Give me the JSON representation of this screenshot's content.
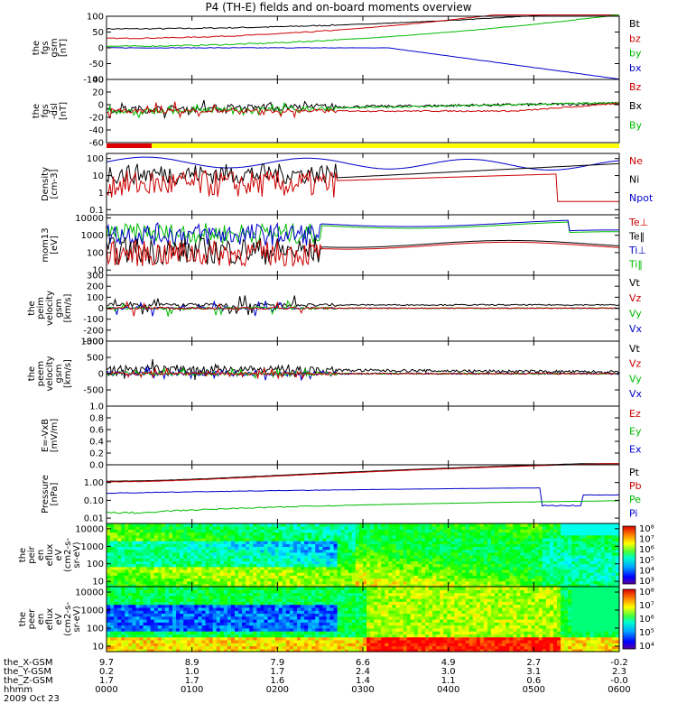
{
  "chart_data": {
    "type": "line",
    "title": "P4 (TH-E) fields and on-board moments overview",
    "time_ticks": [
      "0000",
      "0100",
      "0200",
      "0300",
      "0400",
      "0500",
      "0600"
    ],
    "date_label": "2009 Oct 23",
    "ephemeris": [
      {
        "label": "the_X-GSM",
        "values": [
          "9.7",
          "8.9",
          "7.9",
          "6.6",
          "4.9",
          "2.7",
          "-0.2"
        ]
      },
      {
        "label": "the_Y-GSM",
        "values": [
          "0.2",
          "1.0",
          "1.7",
          "2.4",
          "3.0",
          "3.1",
          "2.3"
        ]
      },
      {
        "label": "the_Z-GSM",
        "values": [
          "1.7",
          "1.7",
          "1.6",
          "1.4",
          "1.1",
          "0.6",
          "-0.0"
        ]
      },
      {
        "label": "hhmm",
        "values": [
          "0000",
          "0100",
          "0200",
          "0300",
          "0400",
          "0500",
          "0600"
        ]
      }
    ],
    "panels": [
      {
        "id": "p1",
        "ylabel": [
          "the",
          "fgs",
          "gsm",
          "[nT]"
        ],
        "yticks": [
          "100",
          "50",
          "0",
          "-50",
          "-100"
        ],
        "ylim": [
          -100,
          100
        ],
        "legend": [
          {
            "name": "Bt",
            "color": "#000000"
          },
          {
            "name": "bz",
            "color": "#cc0000"
          },
          {
            "name": "by",
            "color": "#00bb00"
          },
          {
            "name": "bx",
            "color": "#0000cc"
          }
        ]
      },
      {
        "id": "p2",
        "ylabel": [
          "the",
          "fgs",
          "-dsl",
          "[nT]"
        ],
        "yticks": [
          "40",
          "20",
          "0",
          "-20",
          "-40",
          "-60"
        ],
        "ylim": [
          -60,
          40
        ],
        "legend": [
          {
            "name": "Bz",
            "color": "#cc0000"
          },
          {
            "name": "Bx",
            "color": "#000000"
          },
          {
            "name": "By",
            "color": "#00bb00"
          }
        ]
      },
      {
        "id": "p3",
        "ylabel": [
          "Density",
          "[cm-3]"
        ],
        "yticks": [
          "100",
          "10",
          "1",
          "0.1"
        ],
        "ylim": [
          0.05,
          200
        ],
        "log": true,
        "legend": [
          {
            "name": "Ne",
            "color": "#cc0000"
          },
          {
            "name": "Ni",
            "color": "#000000"
          },
          {
            "name": "Npot",
            "color": "#0000cc"
          }
        ]
      },
      {
        "id": "p4",
        "ylabel": [
          "mom13",
          "[eV]"
        ],
        "yticks": [
          "10000",
          "1000",
          "100",
          "10"
        ],
        "ylim": [
          5,
          15000
        ],
        "log": true,
        "legend": [
          {
            "name": "Te⊥",
            "color": "#cc0000"
          },
          {
            "name": "Te‖",
            "color": "#000000"
          },
          {
            "name": "Ti⊥",
            "color": "#0000cc"
          },
          {
            "name": "Ti‖",
            "color": "#00bb00"
          }
        ]
      },
      {
        "id": "p5",
        "ylabel": [
          "the",
          "peim",
          "velocity",
          "gsm",
          "[km/s]"
        ],
        "yticks": [
          "300",
          "200",
          "100",
          "0",
          "-100",
          "-200",
          "-300"
        ],
        "ylim": [
          -300,
          300
        ],
        "legend": [
          {
            "name": "Vt",
            "color": "#000000"
          },
          {
            "name": "Vz",
            "color": "#cc0000"
          },
          {
            "name": "Vy",
            "color": "#00bb00"
          },
          {
            "name": "Vx",
            "color": "#0000cc"
          }
        ]
      },
      {
        "id": "p6",
        "ylabel": [
          "the",
          "peem",
          "velocity",
          "gsm",
          "[km/s]"
        ],
        "yticks": [
          "1000",
          "500",
          "0",
          "-500"
        ],
        "ylim": [
          -1000,
          1000
        ],
        "legend": [
          {
            "name": "Vt",
            "color": "#000000"
          },
          {
            "name": "Vz",
            "color": "#cc0000"
          },
          {
            "name": "Vy",
            "color": "#00bb00"
          },
          {
            "name": "Vx",
            "color": "#0000cc"
          }
        ]
      },
      {
        "id": "p7",
        "ylabel": [
          "E=-VxB",
          "[mV/m]"
        ],
        "yticks": [
          "1.0",
          "0.8",
          "0.6",
          "0.4",
          "0.2",
          "0.0"
        ],
        "ylim": [
          0,
          1
        ],
        "legend": [
          {
            "name": "Ez",
            "color": "#cc0000"
          },
          {
            "name": "Ey",
            "color": "#00bb00"
          },
          {
            "name": "Ex",
            "color": "#0000cc"
          }
        ]
      },
      {
        "id": "p8",
        "ylabel": [
          "Pressure",
          "[nPa]"
        ],
        "yticks": [
          "1.00",
          "0.10",
          "0.01"
        ],
        "ylim": [
          0.005,
          10
        ],
        "log": true,
        "legend": [
          {
            "name": "Pt",
            "color": "#000000"
          },
          {
            "name": "Pb",
            "color": "#cc0000"
          },
          {
            "name": "Pe",
            "color": "#00bb00"
          },
          {
            "name": "Pi",
            "color": "#0000cc"
          }
        ]
      },
      {
        "id": "p9",
        "ylabel": [
          "the",
          "peir",
          "en",
          "eflux",
          "eV",
          "(cm2-s-",
          "sr-eV)"
        ],
        "yticks": [
          "10000",
          "1000",
          "100",
          "10"
        ],
        "ylim": [
          5,
          20000
        ],
        "log": true,
        "cbar": [
          "10⁸",
          "10⁷",
          "10⁶",
          "10⁵",
          "10⁴",
          "10³"
        ]
      },
      {
        "id": "p10",
        "ylabel": [
          "the",
          "peer",
          "en",
          "eflux",
          "eV",
          "(cm2-s-",
          "sr-eV)"
        ],
        "yticks": [
          "10000",
          "1000",
          "100",
          "10"
        ],
        "ylim": [
          5,
          20000
        ],
        "log": true,
        "cbar": [
          "10⁸",
          "10⁷",
          "10⁶",
          "10⁵",
          "10⁴"
        ]
      }
    ]
  }
}
